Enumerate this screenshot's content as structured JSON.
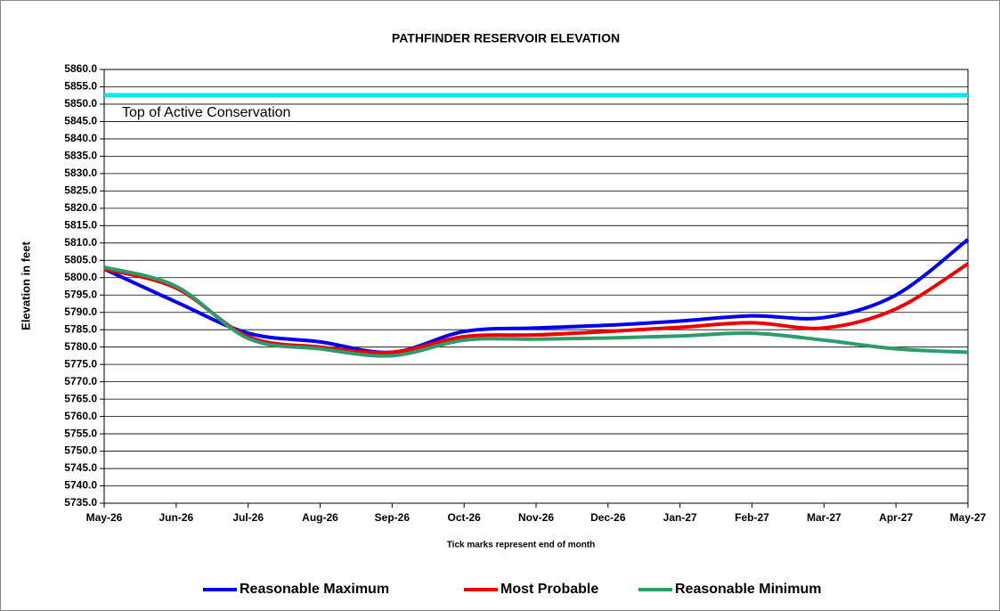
{
  "chart_data": {
    "type": "line",
    "title": "PATHFINDER RESERVOIR ELEVATION",
    "x_label": "Tick marks represent end of month",
    "y_label": "Elevation in feet",
    "categories": [
      "May-26",
      "Jun-26",
      "Jul-26",
      "Aug-26",
      "Sep-26",
      "Oct-26",
      "Nov-26",
      "Dec-26",
      "Jan-27",
      "Feb-27",
      "Mar-27",
      "Apr-27",
      "May-27"
    ],
    "series": [
      {
        "name": "Reasonable Maximum",
        "color": "#0000ee",
        "values": [
          5802.5,
          5793,
          5784,
          5781.5,
          5778.5,
          5784.5,
          5785.5,
          5786.3,
          5787.5,
          5789,
          5788.5,
          5795,
          5811
        ]
      },
      {
        "name": "Most Probable",
        "color": "#ee0000",
        "values": [
          5802.5,
          5797,
          5783,
          5780,
          5778.5,
          5783,
          5783.5,
          5784.5,
          5785.7,
          5787,
          5785.5,
          5791,
          5804
        ]
      },
      {
        "name": "Reasonable Minimum",
        "color": "#2e9b6a",
        "values": [
          5803,
          5797.5,
          5782.5,
          5779.5,
          5777.5,
          5782,
          5782.3,
          5782.6,
          5783.2,
          5784,
          5782,
          5779.5,
          5778.5
        ]
      }
    ],
    "reference_line": {
      "value": 5852.6,
      "label": "Top of Active Conservation",
      "color": "#00e8f0"
    },
    "ylim": [
      5735,
      5860
    ],
    "yticks": [
      {
        "value": 5735,
        "label": "5735.0"
      },
      {
        "value": 5740,
        "label": "5740.0"
      },
      {
        "value": 5745,
        "label": "5745.0"
      },
      {
        "value": 5750,
        "label": "5750.0"
      },
      {
        "value": 5755,
        "label": "5755.0"
      },
      {
        "value": 5760,
        "label": "5760.0"
      },
      {
        "value": 5765,
        "label": "5765.0"
      },
      {
        "value": 5770,
        "label": "5770.0"
      },
      {
        "value": 5775,
        "label": "5775.0"
      },
      {
        "value": 5780,
        "label": "5780.0"
      },
      {
        "value": 5785,
        "label": "5785.0"
      },
      {
        "value": 5790,
        "label": "5790.0"
      },
      {
        "value": 5795,
        "label": "5795.0"
      },
      {
        "value": 5800,
        "label": "5800.0"
      },
      {
        "value": 5805,
        "label": "5805.0"
      },
      {
        "value": 5810,
        "label": "5810.0"
      },
      {
        "value": 5815,
        "label": "5815.0"
      },
      {
        "value": 5820,
        "label": "5820.0"
      },
      {
        "value": 5825,
        "label": "5825.0"
      },
      {
        "value": 5830,
        "label": "5830.0"
      },
      {
        "value": 5835,
        "label": "5835.0"
      },
      {
        "value": 5840,
        "label": "5840.0"
      },
      {
        "value": 5845,
        "label": "5845.0"
      },
      {
        "value": 5850,
        "label": "5850.0"
      },
      {
        "value": 5855,
        "label": "5855.0"
      },
      {
        "value": 5860,
        "label": "5860.0"
      }
    ],
    "grid": true,
    "legend": "bottom"
  }
}
